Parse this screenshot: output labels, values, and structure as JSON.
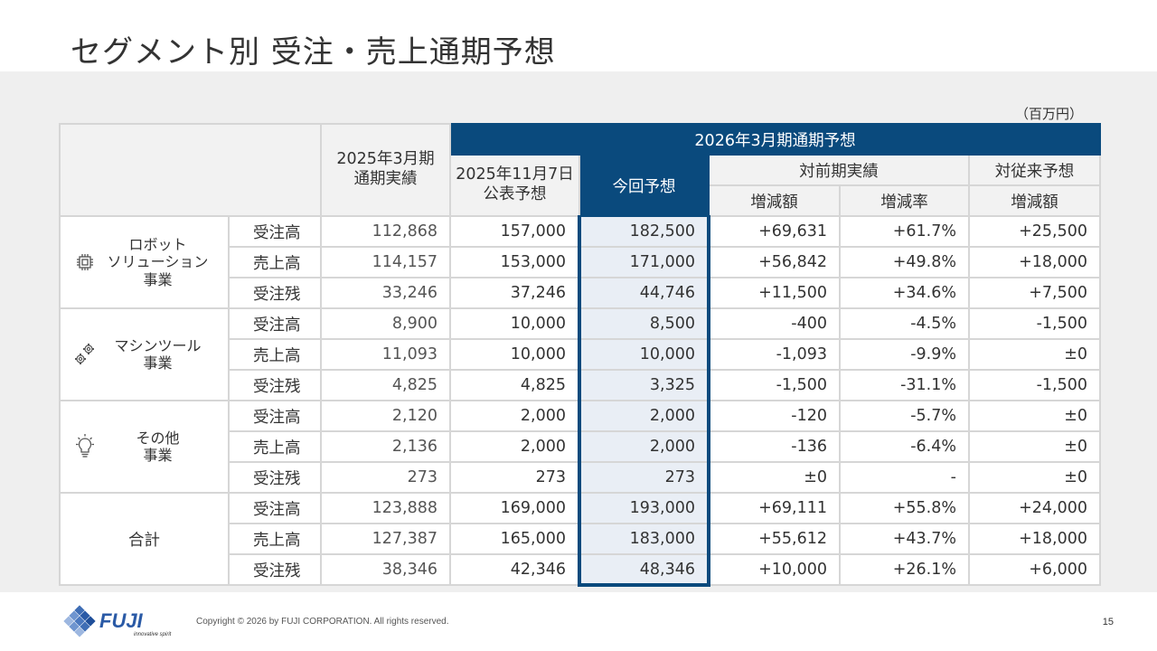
{
  "title": "セグメント別 受注・売上通期予想",
  "unit": "（百万円）",
  "header": {
    "col_prev": "2025年3月期\n通期実績",
    "group_forecast": "2026年3月期通期予想",
    "col_nov": "2025年11月7日\n公表予想",
    "col_now": "今回予想",
    "group_vs_prev": "対前期実績",
    "group_vs_old": "対従来予想",
    "sub_diff": "増減額",
    "sub_rate": "増減率",
    "sub_diff2": "増減額"
  },
  "segments": [
    {
      "name": "ロボット\nソリューション\n事業",
      "icon": "chip-icon",
      "rows": [
        {
          "metric": "受注高",
          "prev": "112,868",
          "nov": "157,000",
          "now": "182,500",
          "diff": "+69,631",
          "rate": "+61.7%",
          "diff2": "+25,500"
        },
        {
          "metric": "売上高",
          "prev": "114,157",
          "nov": "153,000",
          "now": "171,000",
          "diff": "+56,842",
          "rate": "+49.8%",
          "diff2": "+18,000"
        },
        {
          "metric": "受注残",
          "prev": "33,246",
          "nov": "37,246",
          "now": "44,746",
          "diff": "+11,500",
          "rate": "+34.6%",
          "diff2": "+7,500"
        }
      ]
    },
    {
      "name": "マシンツール\n事業",
      "icon": "gears-icon",
      "rows": [
        {
          "metric": "受注高",
          "prev": "8,900",
          "nov": "10,000",
          "now": "8,500",
          "diff": "-400",
          "rate": "-4.5%",
          "diff2": "-1,500"
        },
        {
          "metric": "売上高",
          "prev": "11,093",
          "nov": "10,000",
          "now": "10,000",
          "diff": "-1,093",
          "rate": "-9.9%",
          "diff2": "±0"
        },
        {
          "metric": "受注残",
          "prev": "4,825",
          "nov": "4,825",
          "now": "3,325",
          "diff": "-1,500",
          "rate": "-31.1%",
          "diff2": "-1,500"
        }
      ]
    },
    {
      "name": "その他\n事業",
      "icon": "lightbulb-icon",
      "rows": [
        {
          "metric": "受注高",
          "prev": "2,120",
          "nov": "2,000",
          "now": "2,000",
          "diff": "-120",
          "rate": "-5.7%",
          "diff2": "±0"
        },
        {
          "metric": "売上高",
          "prev": "2,136",
          "nov": "2,000",
          "now": "2,000",
          "diff": "-136",
          "rate": "-6.4%",
          "diff2": "±0"
        },
        {
          "metric": "受注残",
          "prev": "273",
          "nov": "273",
          "now": "273",
          "diff": "±0",
          "rate": "-",
          "diff2": "±0"
        }
      ]
    },
    {
      "name": "合計",
      "icon": "",
      "rows": [
        {
          "metric": "受注高",
          "prev": "123,888",
          "nov": "169,000",
          "now": "193,000",
          "diff": "+69,111",
          "rate": "+55.8%",
          "diff2": "+24,000"
        },
        {
          "metric": "売上高",
          "prev": "127,387",
          "nov": "165,000",
          "now": "183,000",
          "diff": "+55,612",
          "rate": "+43.7%",
          "diff2": "+18,000"
        },
        {
          "metric": "受注残",
          "prev": "38,346",
          "nov": "42,346",
          "now": "48,346",
          "diff": "+10,000",
          "rate": "+26.1%",
          "diff2": "+6,000"
        }
      ]
    }
  ],
  "footer": {
    "logo_text": "FUJI",
    "logo_tagline": "innovative spirit",
    "copyright": "Copyright © 2026 by FUJI CORPORATION. All rights reserved.",
    "page_number": "15"
  },
  "colors": {
    "brand_blue": "#0a4a7d",
    "highlight_fill": "#e9eef5",
    "panel_bg": "#efefef"
  }
}
